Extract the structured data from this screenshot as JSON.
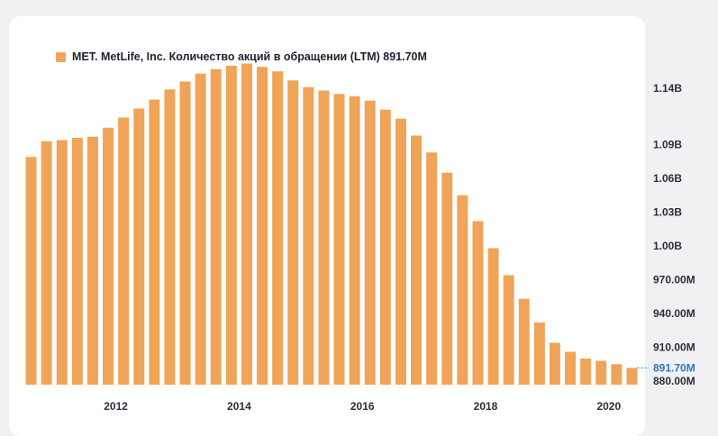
{
  "legend": {
    "label": "MET. MetLife, Inc. Количество акций в обращении (LTM) 891.70M",
    "color": "#f0a458"
  },
  "colors": {
    "bar": "#f0a458",
    "current_value": "#2a78c2",
    "axis_text": "#2a2f3a"
  },
  "chart_data": {
    "type": "bar",
    "title": "",
    "xlabel": "",
    "ylabel": "",
    "series_name": "MET. MetLife, Inc. Количество акций в обращении (LTM)",
    "ylim": [
      870000000,
      1170000000
    ],
    "y_ticks": [
      {
        "value": 1140000000,
        "label": "1.14B"
      },
      {
        "value": 1090000000,
        "label": "1.09B"
      },
      {
        "value": 1060000000,
        "label": "1.06B"
      },
      {
        "value": 1030000000,
        "label": "1.03B"
      },
      {
        "value": 1000000000,
        "label": "1.00B"
      },
      {
        "value": 970000000,
        "label": "970.00M"
      },
      {
        "value": 940000000,
        "label": "940.00M"
      },
      {
        "value": 910000000,
        "label": "910.00M"
      },
      {
        "value": 880000000,
        "label": "880.00M"
      }
    ],
    "x_ticks": [
      "2012",
      "2014",
      "2016",
      "2018",
      "2020"
    ],
    "current_value": {
      "value": 891700000,
      "label": "891.70M"
    },
    "values": [
      1079000000,
      1093000000,
      1094000000,
      1096000000,
      1097000000,
      1105000000,
      1114000000,
      1122000000,
      1130000000,
      1139000000,
      1146000000,
      1153000000,
      1157000000,
      1160000000,
      1162000000,
      1159000000,
      1155000000,
      1147000000,
      1141000000,
      1138000000,
      1135000000,
      1133000000,
      1129000000,
      1121000000,
      1113000000,
      1098000000,
      1083000000,
      1065000000,
      1045000000,
      1022000000,
      998000000,
      974000000,
      953000000,
      932000000,
      914000000,
      906000000,
      900000000,
      898000000,
      895000000,
      891700000
    ]
  }
}
